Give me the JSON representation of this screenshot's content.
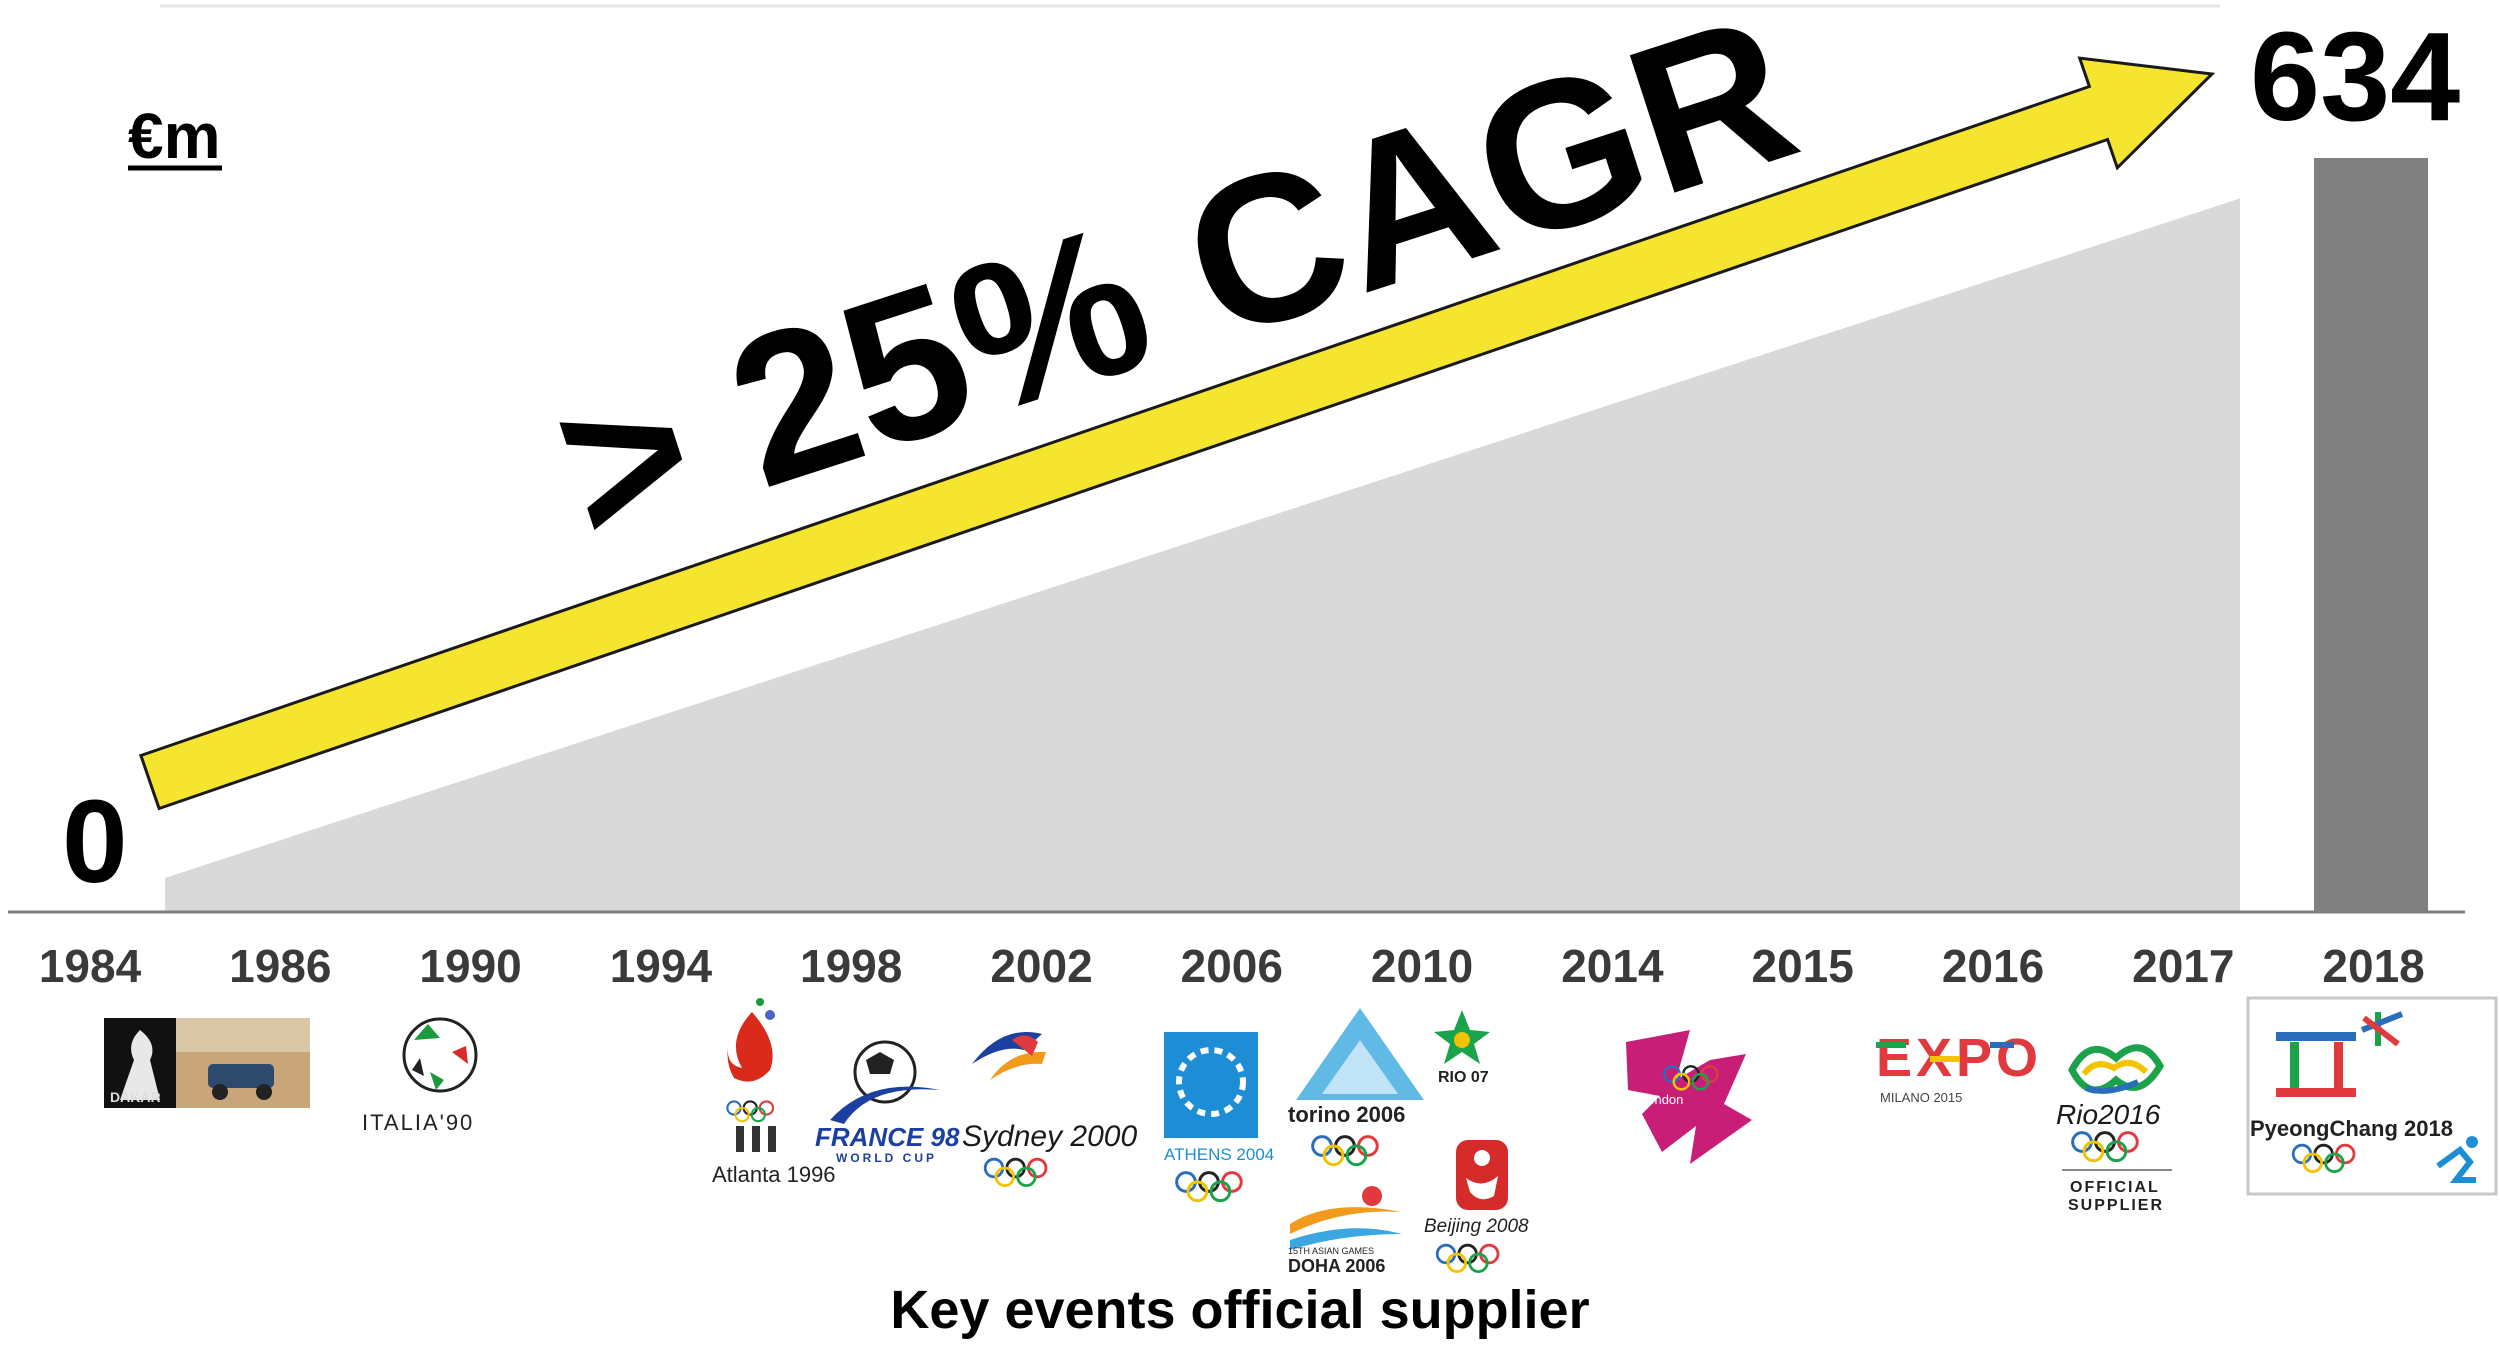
{
  "chart_data": {
    "type": "area",
    "unit": "€m",
    "annotation": "> 25% CAGR",
    "start_value": 0,
    "end_value": 634,
    "start_label": "0",
    "end_label": "634",
    "categories": [
      "1984",
      "1986",
      "1990",
      "1994",
      "1998",
      "2002",
      "2006",
      "2010",
      "2014",
      "2015",
      "2016",
      "2017",
      "2018"
    ],
    "series": [
      {
        "values": [
          0,
          null,
          null,
          null,
          null,
          null,
          null,
          null,
          null,
          null,
          null,
          600,
          634
        ]
      }
    ],
    "footer": "Key events official supplier",
    "colors": {
      "area": "#d9d9d9",
      "bar": "#808080",
      "arrow": "#f5e52e",
      "axis": "#7f7f7f"
    }
  },
  "logos": {
    "dakar": "DAKAR",
    "italia": "ITALIA'90",
    "atlanta": "Atlanta 1996",
    "france": "FRANCE 98",
    "france_sub": "WORLD CUP",
    "sydney": "Sydney 2000",
    "athens": "ATHENS 2004",
    "torino": "torino 2006",
    "doha_sub": "15TH ASIAN GAMES",
    "doha": "DOHA 2006",
    "rio07": "RIO 07",
    "beijing": "Beijing 2008",
    "london": "London",
    "expo": "EXPO",
    "expo_sub": "MILANO 2015",
    "rio2016": "Rio2016",
    "official": "OFFICIAL",
    "supplier": "SUPPLIER",
    "pyeongchang": "PyeongChang 2018"
  }
}
